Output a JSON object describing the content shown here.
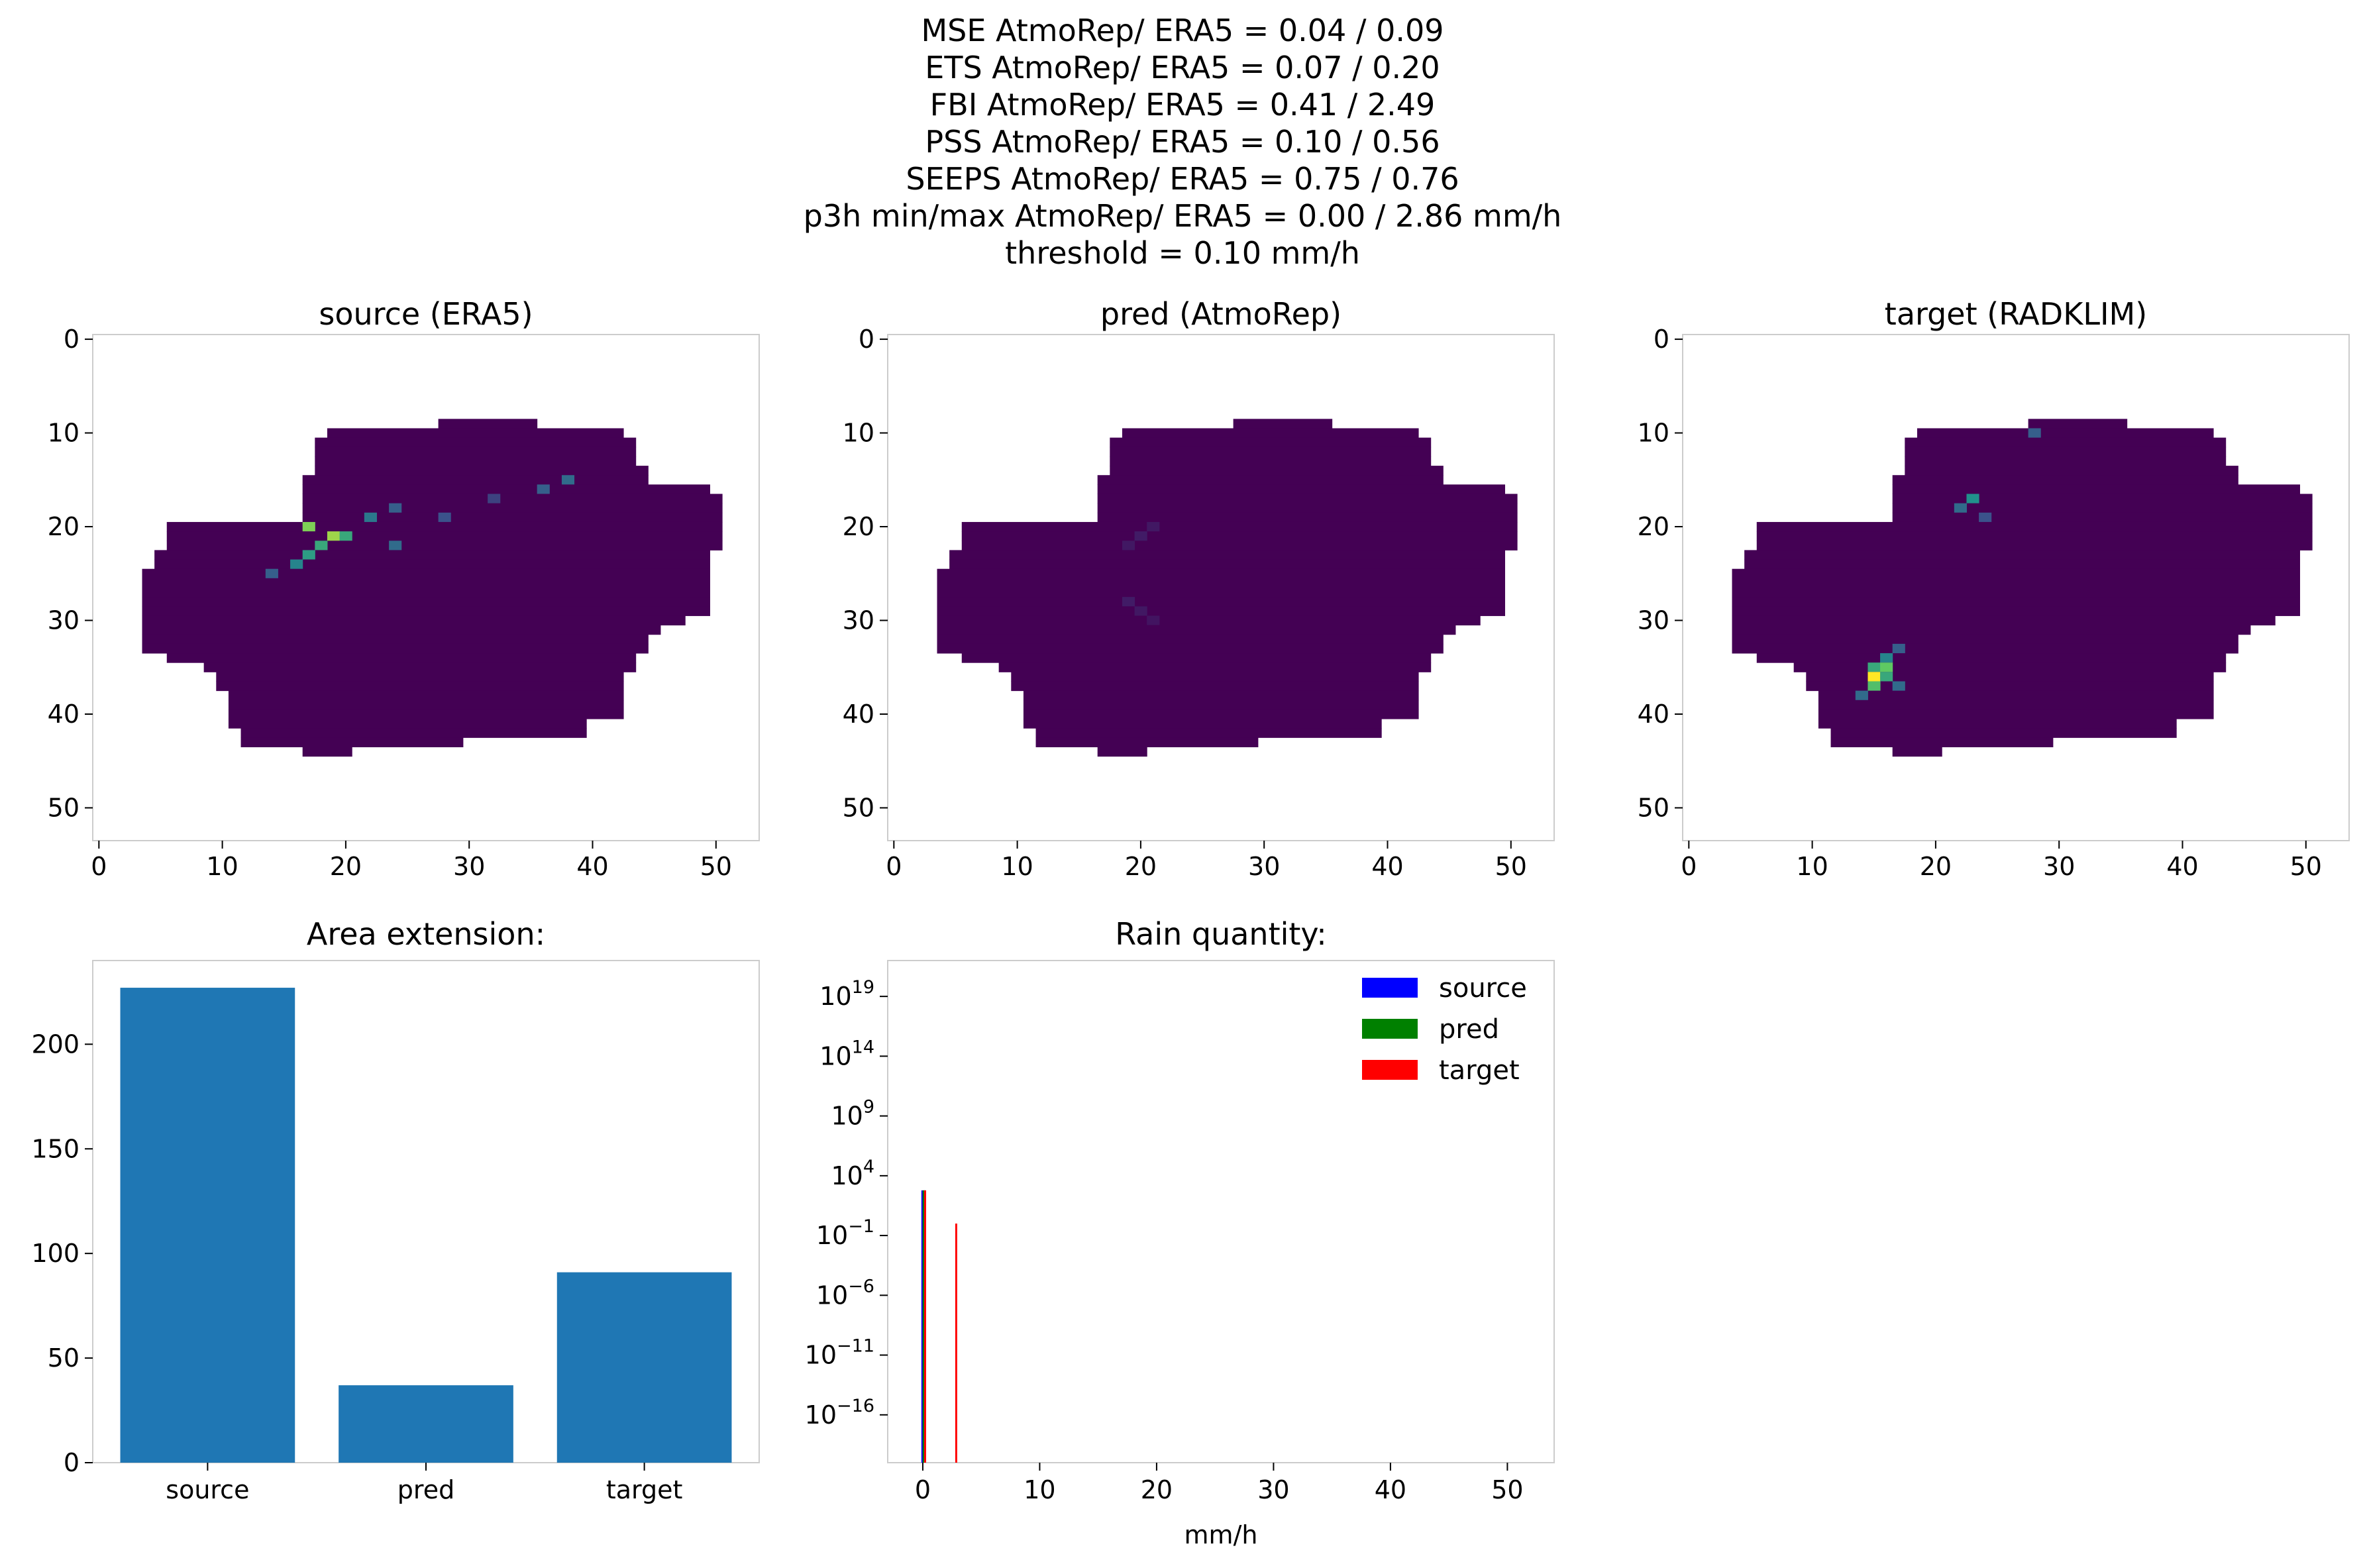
{
  "suptitle": [
    "MSE AtmoRep/ ERA5 = 0.04 / 0.09",
    "ETS AtmoRep/ ERA5 = 0.07 / 0.20",
    "FBI AtmoRep/ ERA5 = 0.41 / 2.49",
    "PSS AtmoRep/ ERA5 = 0.10 / 0.56",
    "SEEPS AtmoRep/ ERA5 = 0.75 / 0.76",
    "p3h min/max AtmoRep/ ERA5 = 0.00 / 2.86 mm/h",
    "threshold = 0.10 mm/h"
  ],
  "colors": {
    "outside": "#ffffff",
    "viridis_dark": "#440154",
    "bar": "#1f77b4",
    "hist_source": "#0000ff",
    "hist_pred": "#008000",
    "hist_target": "#ff0000",
    "spine": "#cccccc"
  },
  "chart_data": [
    {
      "type": "heatmap",
      "title": "source (ERA5)",
      "colormap": "viridis",
      "grid": false,
      "xlim": [
        -0.5,
        53.5
      ],
      "ylim": [
        53.5,
        -0.5
      ],
      "xticks": [
        0,
        10,
        20,
        30,
        40,
        50
      ],
      "yticks": [
        0,
        10,
        20,
        30,
        40,
        50
      ],
      "mask_rows": [
        [
          9,
          28,
          35
        ],
        [
          10,
          19,
          42
        ],
        [
          11,
          18,
          43
        ],
        [
          12,
          18,
          43
        ],
        [
          13,
          18,
          43
        ],
        [
          14,
          18,
          44
        ],
        [
          15,
          17,
          44
        ],
        [
          16,
          17,
          49
        ],
        [
          17,
          17,
          50
        ],
        [
          18,
          17,
          50
        ],
        [
          19,
          17,
          50
        ],
        [
          20,
          6,
          50
        ],
        [
          21,
          6,
          50
        ],
        [
          22,
          6,
          50
        ],
        [
          23,
          5,
          49
        ],
        [
          24,
          5,
          49
        ],
        [
          25,
          4,
          49
        ],
        [
          26,
          4,
          49
        ],
        [
          27,
          4,
          49
        ],
        [
          28,
          4,
          49
        ],
        [
          29,
          4,
          49
        ],
        [
          30,
          4,
          47
        ],
        [
          31,
          4,
          45
        ],
        [
          32,
          4,
          44
        ],
        [
          33,
          4,
          44
        ],
        [
          34,
          6,
          43
        ],
        [
          35,
          9,
          43
        ],
        [
          36,
          10,
          42
        ],
        [
          37,
          10,
          42
        ],
        [
          38,
          11,
          42
        ],
        [
          39,
          11,
          42
        ],
        [
          40,
          11,
          42
        ],
        [
          41,
          11,
          39
        ],
        [
          42,
          12,
          39
        ],
        [
          43,
          12,
          29
        ],
        [
          44,
          17,
          20
        ]
      ],
      "hotspots": [
        [
          20,
          17,
          0.8
        ],
        [
          21,
          19,
          0.85
        ],
        [
          22,
          18,
          0.6
        ],
        [
          23,
          17,
          0.55
        ],
        [
          24,
          16,
          0.45
        ],
        [
          25,
          14,
          0.3
        ],
        [
          19,
          22,
          0.4
        ],
        [
          18,
          24,
          0.3
        ],
        [
          16,
          36,
          0.3
        ],
        [
          15,
          38,
          0.35
        ],
        [
          22,
          24,
          0.35
        ],
        [
          21,
          20,
          0.6
        ],
        [
          17,
          32,
          0.2
        ],
        [
          19,
          28,
          0.25
        ]
      ],
      "value_range": [
        0,
        1
      ]
    },
    {
      "type": "heatmap",
      "title": "pred (AtmoRep)",
      "colormap": "viridis",
      "grid": false,
      "xlim": [
        -0.5,
        53.5
      ],
      "ylim": [
        53.5,
        -0.5
      ],
      "xticks": [
        0,
        10,
        20,
        30,
        40,
        50
      ],
      "yticks": [
        0,
        10,
        20,
        30,
        40,
        50
      ],
      "mask_rows": [
        [
          9,
          28,
          35
        ],
        [
          10,
          19,
          42
        ],
        [
          11,
          18,
          43
        ],
        [
          12,
          18,
          43
        ],
        [
          13,
          18,
          43
        ],
        [
          14,
          18,
          44
        ],
        [
          15,
          17,
          44
        ],
        [
          16,
          17,
          49
        ],
        [
          17,
          17,
          50
        ],
        [
          18,
          17,
          50
        ],
        [
          19,
          17,
          50
        ],
        [
          20,
          6,
          50
        ],
        [
          21,
          6,
          50
        ],
        [
          22,
          6,
          50
        ],
        [
          23,
          5,
          49
        ],
        [
          24,
          5,
          49
        ],
        [
          25,
          4,
          49
        ],
        [
          26,
          4,
          49
        ],
        [
          27,
          4,
          49
        ],
        [
          28,
          4,
          49
        ],
        [
          29,
          4,
          49
        ],
        [
          30,
          4,
          47
        ],
        [
          31,
          4,
          45
        ],
        [
          32,
          4,
          44
        ],
        [
          33,
          4,
          44
        ],
        [
          34,
          6,
          43
        ],
        [
          35,
          9,
          43
        ],
        [
          36,
          10,
          42
        ],
        [
          37,
          10,
          42
        ],
        [
          38,
          11,
          42
        ],
        [
          39,
          11,
          42
        ],
        [
          40,
          11,
          42
        ],
        [
          41,
          11,
          39
        ],
        [
          42,
          12,
          39
        ],
        [
          43,
          12,
          29
        ],
        [
          44,
          17,
          20
        ]
      ],
      "hotspots": [
        [
          20,
          21,
          0.07
        ],
        [
          21,
          20,
          0.08
        ],
        [
          22,
          19,
          0.07
        ],
        [
          28,
          19,
          0.08
        ],
        [
          29,
          20,
          0.07
        ],
        [
          30,
          21,
          0.06
        ]
      ],
      "value_range": [
        0,
        1
      ]
    },
    {
      "type": "heatmap",
      "title": "target (RADKLIM)",
      "colormap": "viridis",
      "grid": false,
      "xlim": [
        -0.5,
        53.5
      ],
      "ylim": [
        53.5,
        -0.5
      ],
      "xticks": [
        0,
        10,
        20,
        30,
        40,
        50
      ],
      "yticks": [
        0,
        10,
        20,
        30,
        40,
        50
      ],
      "mask_rows": [
        [
          9,
          28,
          35
        ],
        [
          10,
          19,
          42
        ],
        [
          11,
          18,
          43
        ],
        [
          12,
          18,
          43
        ],
        [
          13,
          18,
          43
        ],
        [
          14,
          18,
          44
        ],
        [
          15,
          17,
          44
        ],
        [
          16,
          17,
          49
        ],
        [
          17,
          17,
          50
        ],
        [
          18,
          17,
          50
        ],
        [
          19,
          17,
          50
        ],
        [
          20,
          6,
          50
        ],
        [
          21,
          6,
          50
        ],
        [
          22,
          6,
          50
        ],
        [
          23,
          5,
          49
        ],
        [
          24,
          5,
          49
        ],
        [
          25,
          4,
          49
        ],
        [
          26,
          4,
          49
        ],
        [
          27,
          4,
          49
        ],
        [
          28,
          4,
          49
        ],
        [
          29,
          4,
          49
        ],
        [
          30,
          4,
          47
        ],
        [
          31,
          4,
          45
        ],
        [
          32,
          4,
          44
        ],
        [
          33,
          4,
          44
        ],
        [
          34,
          6,
          43
        ],
        [
          35,
          9,
          43
        ],
        [
          36,
          10,
          42
        ],
        [
          37,
          10,
          42
        ],
        [
          38,
          11,
          42
        ],
        [
          39,
          11,
          42
        ],
        [
          40,
          11,
          42
        ],
        [
          41,
          11,
          39
        ],
        [
          42,
          12,
          39
        ],
        [
          43,
          12,
          29
        ],
        [
          44,
          17,
          20
        ]
      ],
      "hotspots": [
        [
          36,
          15,
          1.0
        ],
        [
          35,
          16,
          0.75
        ],
        [
          37,
          15,
          0.7
        ],
        [
          35,
          15,
          0.6
        ],
        [
          36,
          16,
          0.6
        ],
        [
          34,
          16,
          0.45
        ],
        [
          38,
          14,
          0.35
        ],
        [
          37,
          17,
          0.35
        ],
        [
          33,
          17,
          0.3
        ],
        [
          17,
          23,
          0.5
        ],
        [
          18,
          22,
          0.35
        ],
        [
          19,
          24,
          0.25
        ],
        [
          10,
          28,
          0.3
        ]
      ],
      "value_range": [
        0,
        1
      ]
    },
    {
      "type": "bar",
      "title": "Area extension:",
      "categories": [
        "source",
        "pred",
        "target"
      ],
      "values": [
        227,
        37,
        91
      ],
      "ylim": [
        0,
        240
      ],
      "yticks": [
        0,
        50,
        100,
        150,
        200
      ],
      "grid": false
    },
    {
      "type": "bar",
      "title": "Rain quantity:",
      "xlabel": "mm/h",
      "yscale": "log",
      "xlim": [
        -3,
        54
      ],
      "ylog_range": [
        -20,
        22
      ],
      "xticks": [
        0,
        10,
        20,
        30,
        40,
        50
      ],
      "yticks_exp": [
        -16,
        -11,
        -6,
        -1,
        4,
        9,
        14,
        19
      ],
      "legend_position": "top-right",
      "series": [
        {
          "name": "source",
          "bars": [
            {
              "x": 0.05,
              "value": 600
            }
          ]
        },
        {
          "name": "pred",
          "bars": [
            {
              "x": 0.1,
              "value": 600
            }
          ]
        },
        {
          "name": "target",
          "bars": [
            {
              "x": 0.2,
              "value": 600
            },
            {
              "x": 2.86,
              "value": 1
            }
          ]
        }
      ]
    }
  ]
}
